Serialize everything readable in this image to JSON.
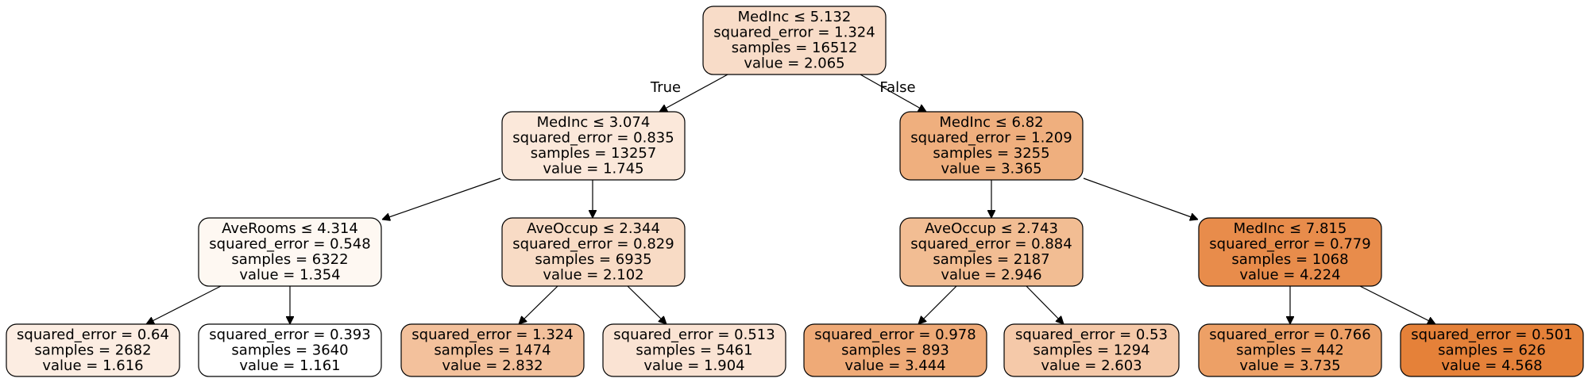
{
  "tree": {
    "edge_labels": {
      "true_label": "True",
      "false_label": "False"
    },
    "nodes": [
      {
        "id": "n0",
        "lines": [
          "MedInc ≤ 5.132",
          "squared_error = 1.324",
          "samples = 16512",
          "value = 2.065"
        ],
        "fill": "#f8dcc8"
      },
      {
        "id": "n1",
        "lines": [
          "MedInc ≤ 3.074",
          "squared_error = 0.835",
          "samples = 13257",
          "value = 1.745"
        ],
        "fill": "#fbe8da"
      },
      {
        "id": "n2",
        "lines": [
          "MedInc ≤ 6.82",
          "squared_error = 1.209",
          "samples = 3255",
          "value = 3.365"
        ],
        "fill": "#efaf7e"
      },
      {
        "id": "n3",
        "lines": [
          "AveRooms ≤ 4.314",
          "squared_error = 0.548",
          "samples = 6322",
          "value = 1.354"
        ],
        "fill": "#fef8f2"
      },
      {
        "id": "n4",
        "lines": [
          "AveOccup ≤ 2.344",
          "squared_error = 0.829",
          "samples = 6935",
          "value = 2.102"
        ],
        "fill": "#f8dbc5"
      },
      {
        "id": "n5",
        "lines": [
          "AveOccup ≤ 2.743",
          "squared_error = 0.884",
          "samples = 2187",
          "value = 2.946"
        ],
        "fill": "#f2bd93"
      },
      {
        "id": "n6",
        "lines": [
          "MedInc ≤ 7.815",
          "squared_error = 0.779",
          "samples = 1068",
          "value = 4.224"
        ],
        "fill": "#e88c4b"
      },
      {
        "id": "n7",
        "lines": [
          "squared_error = 0.64",
          "samples = 2682",
          "value = 1.616"
        ],
        "fill": "#fcede2"
      },
      {
        "id": "n8",
        "lines": [
          "squared_error = 0.393",
          "samples = 3640",
          "value = 1.161"
        ],
        "fill": "#ffffff"
      },
      {
        "id": "n9",
        "lines": [
          "squared_error = 1.324",
          "samples = 1474",
          "value = 2.832"
        ],
        "fill": "#f3c19c"
      },
      {
        "id": "n10",
        "lines": [
          "squared_error = 0.513",
          "samples = 5461",
          "value = 1.904"
        ],
        "fill": "#fae3d3"
      },
      {
        "id": "n11",
        "lines": [
          "squared_error = 0.978",
          "samples = 893",
          "value = 3.444"
        ],
        "fill": "#efaa77"
      },
      {
        "id": "n12",
        "lines": [
          "squared_error = 0.53",
          "samples = 1294",
          "value = 2.603"
        ],
        "fill": "#f5c9a9"
      },
      {
        "id": "n13",
        "lines": [
          "squared_error = 0.766",
          "samples = 442",
          "value = 3.735"
        ],
        "fill": "#eda066"
      },
      {
        "id": "n14",
        "lines": [
          "squared_error = 0.501",
          "samples = 626",
          "value = 4.568"
        ],
        "fill": "#e58139"
      }
    ],
    "edges": [
      {
        "from": "n0",
        "to": "n1",
        "label": "true_label"
      },
      {
        "from": "n0",
        "to": "n2",
        "label": "false_label"
      },
      {
        "from": "n1",
        "to": "n3"
      },
      {
        "from": "n1",
        "to": "n4"
      },
      {
        "from": "n2",
        "to": "n5"
      },
      {
        "from": "n2",
        "to": "n6"
      },
      {
        "from": "n3",
        "to": "n7"
      },
      {
        "from": "n3",
        "to": "n8"
      },
      {
        "from": "n4",
        "to": "n9"
      },
      {
        "from": "n4",
        "to": "n10"
      },
      {
        "from": "n5",
        "to": "n11"
      },
      {
        "from": "n5",
        "to": "n12"
      },
      {
        "from": "n6",
        "to": "n13"
      },
      {
        "from": "n6",
        "to": "n14"
      }
    ]
  }
}
